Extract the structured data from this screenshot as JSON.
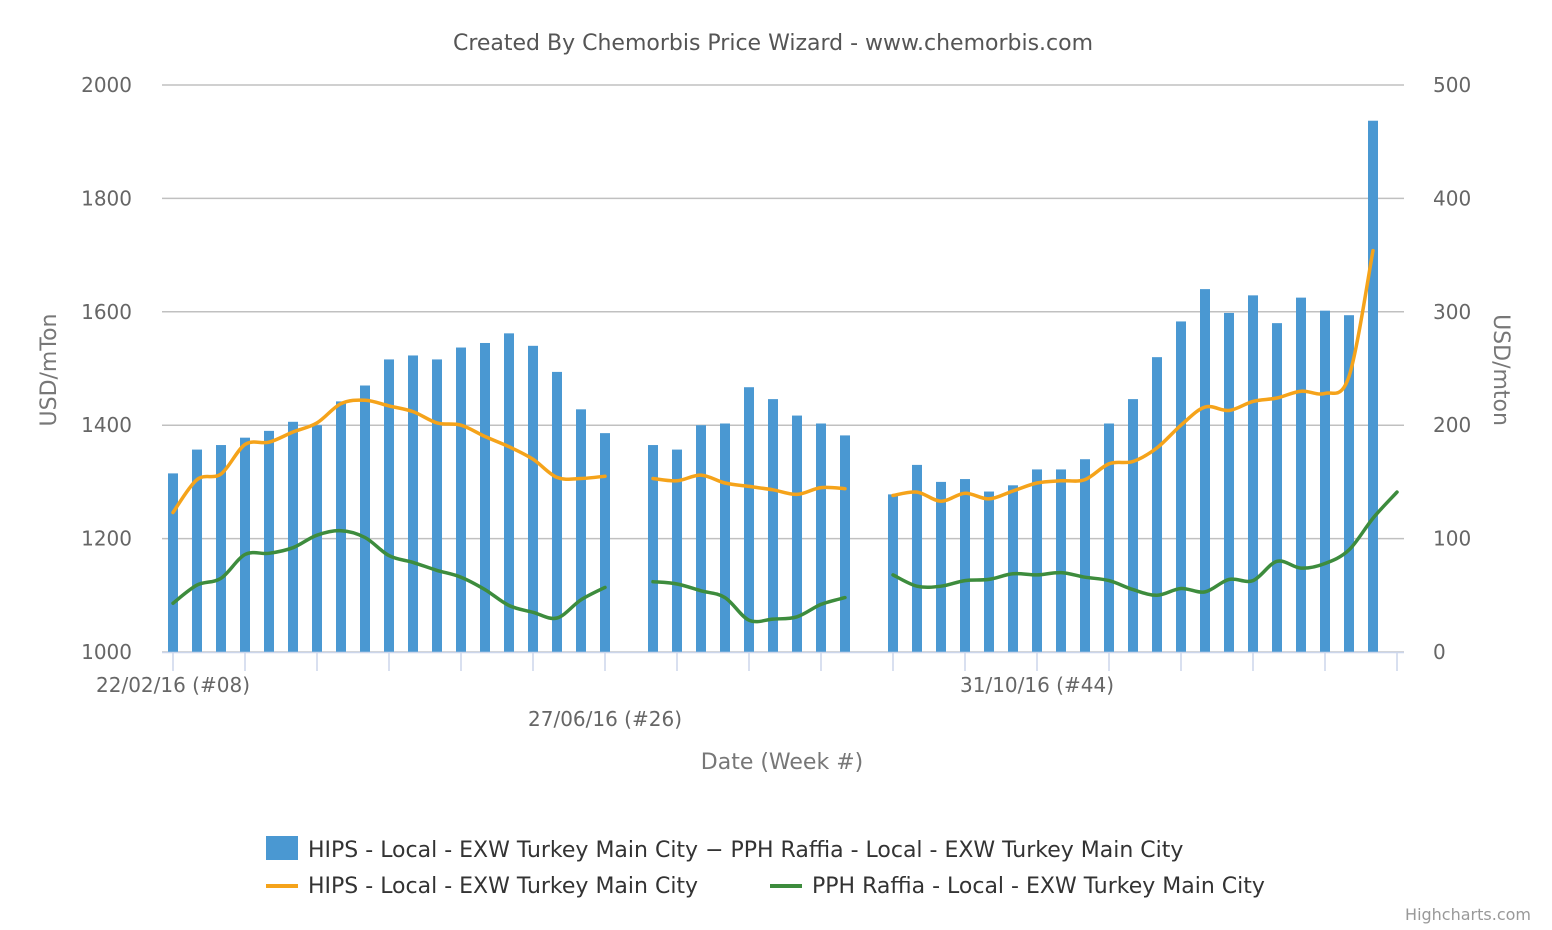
{
  "chart_data": {
    "type": "bar",
    "title": "Created By Chemorbis Price Wizard - www.chemorbis.com",
    "xlabel": "Date (Week #)",
    "ylabel_left": "USD/mTon",
    "ylabel_right": "USD/mton",
    "ylim_left": [
      1000,
      2000
    ],
    "ylim_right": [
      0,
      500
    ],
    "yticks_left": [
      "1000",
      "1200",
      "1400",
      "1600",
      "1800",
      "2000"
    ],
    "yticks_right": [
      "0",
      "100",
      "200",
      "300",
      "400",
      "500"
    ],
    "x_labels": [
      {
        "index": 0,
        "text": "22/02/16 (#08)",
        "row": 1
      },
      {
        "index": 18,
        "text": "27/06/16 (#26)",
        "row": 2
      },
      {
        "index": 36,
        "text": "31/10/16 (#44)",
        "row": 1
      }
    ],
    "grid": true,
    "legend_position": "bottom",
    "series": [
      {
        "name": "HIPS - Local - EXW Turkey Main City − PPH Raffia - Local - EXW Turkey Main City",
        "type": "bar",
        "axis": "left",
        "color": "#4a98d2",
        "values": [
          1315,
          1357,
          1365,
          1378,
          1390,
          1406,
          1400,
          1442,
          1470,
          1516,
          1523,
          1516,
          1537,
          1545,
          1562,
          1540,
          1494,
          1428,
          1386,
          null,
          1365,
          1357,
          1400,
          1403,
          1467,
          1446,
          1417,
          1403,
          1382,
          null,
          1278,
          1330,
          1300,
          1305,
          1283,
          1294,
          1322,
          1322,
          1340,
          1403,
          1446,
          1520,
          1583,
          1640,
          1598,
          1629,
          1580,
          1625,
          1602,
          1594,
          1937,
          null
        ]
      },
      {
        "name": "HIPS - Local - EXW Turkey Main City",
        "type": "line",
        "axis": "right",
        "color": "#f5a31a",
        "values": [
          123,
          152,
          157,
          183,
          185,
          194,
          202,
          219,
          222,
          217,
          212,
          202,
          200,
          190,
          181,
          170,
          154,
          153,
          155,
          null,
          153,
          151,
          156,
          149,
          146,
          143,
          139,
          145,
          144,
          null,
          138,
          141,
          133,
          140,
          135,
          142,
          149,
          151,
          152,
          166,
          168,
          180,
          200,
          216,
          213,
          221,
          224,
          230,
          228,
          243,
          354,
          null
        ]
      },
      {
        "name": "PPH Raffia - Local - EXW Turkey Main City",
        "type": "line",
        "axis": "right",
        "color": "#3d8c3d",
        "values": [
          43,
          59,
          65,
          86,
          87,
          92,
          103,
          107,
          101,
          85,
          79,
          72,
          66,
          55,
          41,
          35,
          30,
          46,
          57,
          null,
          62,
          60,
          54,
          48,
          28,
          29,
          31,
          42,
          48,
          null,
          68,
          58,
          58,
          63,
          64,
          69,
          68,
          70,
          66,
          63,
          55,
          50,
          56,
          53,
          64,
          63,
          80,
          74,
          78,
          90,
          118,
          141
        ]
      }
    ]
  },
  "credits": "Highcharts.com"
}
